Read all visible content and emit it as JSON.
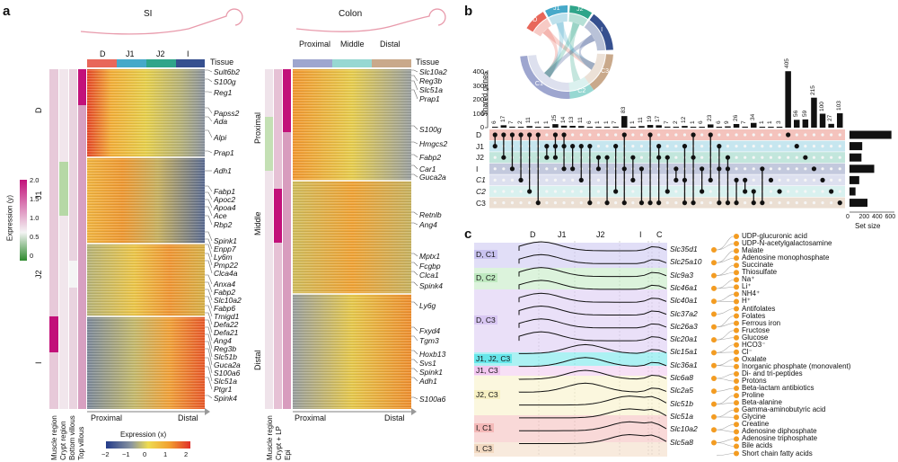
{
  "panels": {
    "a": "a",
    "b": "b",
    "c": "c"
  },
  "panel_a": {
    "si_title": "SI",
    "colon_title": "Colon",
    "si_tissues": [
      "D",
      "J1",
      "J2",
      "I"
    ],
    "colon_sections": [
      "Proximal",
      "Middle",
      "Distal"
    ],
    "tissue_label": "Tissue",
    "si_row_groups": [
      "D",
      "J1",
      "J2",
      "I"
    ],
    "colon_row_groups": [
      "Proximal",
      "Middle",
      "Distal"
    ],
    "si_genes": [
      "Sult6b2",
      "S100g",
      "Reg1",
      "Papss2",
      "Ada",
      "Alpi",
      "Prap1",
      "Adh1",
      "Fabp1",
      "Apoc2",
      "Apoa4",
      "Ace",
      "Rbp2",
      "Spink1",
      "Enpp7",
      "Ly6m",
      "Pmp22",
      "Clca4a",
      "Anxa4",
      "Fabp2",
      "Slc10a2",
      "Fabp6",
      "Tmigd1",
      "Defa22",
      "Defa21",
      "Ang4",
      "Reg3b",
      "Slc51b",
      "Guca2a",
      "S100a6",
      "Slc51a",
      "Ptgr1",
      "Spink4"
    ],
    "colon_genes": [
      "Slc10a2",
      "Reg3b",
      "Slc51a",
      "Prap1",
      "S100g",
      "Hmgcs2",
      "Fabp2",
      "Car1",
      "Guca2a",
      "Retnlb",
      "Ang4",
      "Mptx1",
      "Fcgbp",
      "Clca1",
      "Spink4",
      "Ly6g",
      "Fxyd4",
      "Tgm3",
      "Hoxb13",
      "Svs1",
      "Spink1",
      "Adh1",
      "S100a6"
    ],
    "si_axis": {
      "left": "Proximal",
      "right": "Distal"
    },
    "colon_axis": {
      "left": "Proximal",
      "right": "Distal"
    },
    "si_bottom_labels": [
      "Muscle region",
      "Crypt region",
      "Bottom villous",
      "Top villous"
    ],
    "colon_bottom_labels": [
      "Muscle region",
      "Crypt + LP",
      "Epi"
    ],
    "legend_y": {
      "title": "Expression (y)",
      "ticks": [
        "2.0",
        "1.5",
        "1.0",
        "0.5",
        "0"
      ]
    },
    "legend_x": {
      "title": "Expression (x)",
      "ticks": [
        "−2",
        "−1",
        "0",
        "1",
        "2"
      ]
    }
  },
  "panel_b": {
    "ylabel": "Shared genes",
    "yticks": [
      "400",
      "300",
      "200",
      "100",
      "0"
    ],
    "set_labels": [
      "D",
      "J1",
      "J2",
      "I",
      "C1",
      "C2",
      "C3"
    ],
    "set_colors": [
      "#e8675a",
      "#46a9c9",
      "#2fa58a",
      "#36508f",
      "#9ea6cf",
      "#97d8d2",
      "#c9a98b"
    ],
    "set_size_label": "Set size",
    "set_size_ticks": [
      "0",
      "200",
      "400",
      "600"
    ],
    "set_sizes": [
      560,
      170,
      160,
      330,
      130,
      80,
      240
    ],
    "chord_labels": [
      "D",
      "J1",
      "J2",
      "I",
      "C3",
      "C2",
      "C1"
    ],
    "bar_labels": [
      "6",
      "17",
      "7",
      "2",
      "11",
      "1",
      "1",
      "25",
      "14",
      "13",
      "11",
      "6",
      "1",
      "1",
      "7",
      "83",
      "1",
      "11",
      "19",
      "17",
      "7",
      "2",
      "12",
      "1",
      "6",
      "23",
      "6",
      "9",
      "26",
      "7",
      "34",
      "1",
      "1",
      "3",
      "405",
      "56",
      "59",
      "215",
      "100",
      "27",
      "103"
    ],
    "bar_values": [
      6,
      17,
      7,
      2,
      11,
      1,
      1,
      25,
      14,
      13,
      11,
      6,
      1,
      1,
      7,
      83,
      1,
      11,
      19,
      17,
      7,
      2,
      12,
      1,
      6,
      23,
      6,
      9,
      26,
      7,
      34,
      1,
      1,
      3,
      405,
      56,
      59,
      215,
      100,
      27,
      103
    ]
  },
  "panel_c": {
    "regions": [
      "D",
      "J1",
      "J2",
      "I",
      "C"
    ],
    "groups": [
      {
        "label": "D, C1",
        "color": "#c9c3f0",
        "genes": [
          "Slc35d1",
          "Slc25a10"
        ]
      },
      {
        "label": "D, C2",
        "color": "#bfe9c0",
        "genes": [
          "Slc9a3"
        ]
      },
      {
        "label": "D, C3",
        "color": "#d8c7f2",
        "genes": [
          "Slc46a1",
          "Slc40a1",
          "Slc37a2",
          "Slc26a3",
          "Slc20a1"
        ]
      },
      {
        "label": "J1, J2, C3",
        "color": "#67e6ea",
        "genes": [
          "Slc15a1"
        ]
      },
      {
        "label": "J1, C3",
        "color": "#f1c6ef",
        "genes": [
          "Slc36a1"
        ]
      },
      {
        "label": "J2, C3",
        "color": "#f7f0c2",
        "genes": [
          "Slc6a8",
          "Slc2a5"
        ]
      },
      {
        "label": "I, C1",
        "color": "#f4b9b8",
        "genes": [
          "Slc51b",
          "Slc51a",
          "Slc10a2"
        ]
      },
      {
        "label": "I, C3",
        "color": "#f2d9c1",
        "genes": [
          "Slc5a8"
        ]
      }
    ],
    "substrates": [
      "UDP-glucuronic acid",
      "UDP-N-acetylgalactosamine",
      "Malate",
      "Adenosine monophosphate",
      "Succinate",
      "Thiosulfate",
      "Na⁺",
      "Li⁺",
      "NH4⁺",
      "H⁺",
      "Antifolates",
      "Folates",
      "Ferrous iron",
      "Fructose",
      "Glucose",
      "HCO3⁻",
      "Cl⁻",
      "Oxalate",
      "Inorganic phosphate (monovalent)",
      "Di- and tri-peptides",
      "Protons",
      "Beta-lactam antibiotics",
      "Proline",
      "Beta-alanine",
      "Gamma-aminobutyric acid",
      "Glycine",
      "Creatine",
      "Adenosine diphosphate",
      "Adenosine triphosphate",
      "Bile acids",
      "Short chain fatty acids"
    ]
  }
}
